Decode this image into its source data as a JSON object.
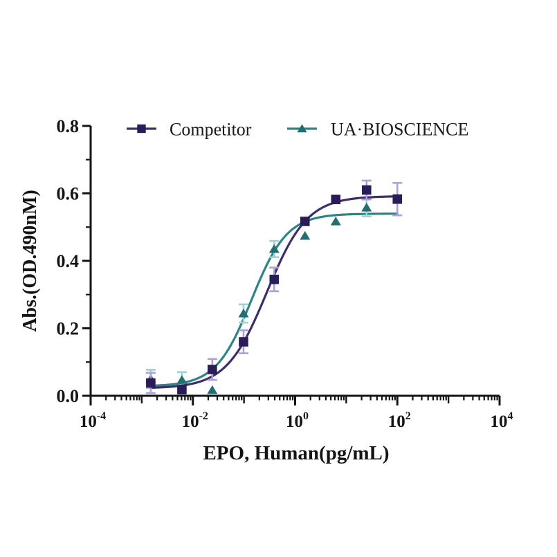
{
  "figure": {
    "background_color": "#ffffff",
    "text_color": "#141414"
  },
  "chart_data": {
    "type": "scatter",
    "fit_type": "4PL sigmoid dose-response",
    "title": "",
    "xlabel": "EPO, Human(pg/mL)",
    "ylabel": "Abs.(OD.490nM)",
    "x_axis": {
      "label": "EPO, Human(pg/mL)",
      "scale": "log10",
      "min_exponent": -4,
      "max_exponent": 4,
      "labeled_tick_exponents": [
        -4,
        -2,
        0,
        2,
        4
      ],
      "tick_base": "10"
    },
    "y_axis": {
      "label": "Abs.(OD.490nM)",
      "min": 0.0,
      "max": 0.8,
      "major_tick_labels": [
        "0.0",
        "0.2",
        "0.4",
        "0.6",
        "0.8"
      ],
      "major_ticks": [
        0.0,
        0.2,
        0.4,
        0.6,
        0.8
      ],
      "minor_tick_step": 0.1
    },
    "grid": false,
    "legend_position": "top-inside",
    "series": [
      {
        "name": "Competitor",
        "marker": "square",
        "marker_color": "#2a1c58",
        "line_color": "#3d2d6b",
        "error_bar_color": "#aba0d8",
        "points": [
          {
            "x": 0.0015,
            "y": 0.038,
            "err": 0.03
          },
          {
            "x": 0.0061,
            "y": 0.018,
            "err": 0
          },
          {
            "x": 0.024,
            "y": 0.078,
            "err": 0.031
          },
          {
            "x": 0.098,
            "y": 0.16,
            "err": 0.034
          },
          {
            "x": 0.39,
            "y": 0.345,
            "err": 0.035
          },
          {
            "x": 1.56,
            "y": 0.517,
            "err": 0
          },
          {
            "x": 6.25,
            "y": 0.582,
            "err": 0
          },
          {
            "x": 25,
            "y": 0.61,
            "err": 0.028
          },
          {
            "x": 100,
            "y": 0.583,
            "err": 0.048
          }
        ],
        "fit": {
          "bottom": 0.022,
          "top": 0.592,
          "ec50": 0.28,
          "hill": 1.1,
          "x_from": 0.0015,
          "x_to": 100
        }
      },
      {
        "name": "UA·BIOSCIENCE",
        "marker": "triangle",
        "marker_color": "#226f73",
        "line_color": "#2d8386",
        "error_bar_color": "#9bd2d4",
        "points": [
          {
            "x": 0.0015,
            "y": 0.05,
            "err": 0.027
          },
          {
            "x": 0.0061,
            "y": 0.047,
            "err": 0.023
          },
          {
            "x": 0.024,
            "y": 0.017,
            "err": 0
          },
          {
            "x": 0.098,
            "y": 0.244,
            "err": 0.027
          },
          {
            "x": 0.39,
            "y": 0.435,
            "err": 0.024
          },
          {
            "x": 1.56,
            "y": 0.474,
            "err": 0
          },
          {
            "x": 6.25,
            "y": 0.517,
            "err": 0
          },
          {
            "x": 25,
            "y": 0.558,
            "err": 0.026
          }
        ],
        "fit": {
          "bottom": 0.028,
          "top": 0.54,
          "ec50": 0.14,
          "hill": 1.25,
          "x_from": 0.0015,
          "x_to": 100
        }
      }
    ]
  }
}
